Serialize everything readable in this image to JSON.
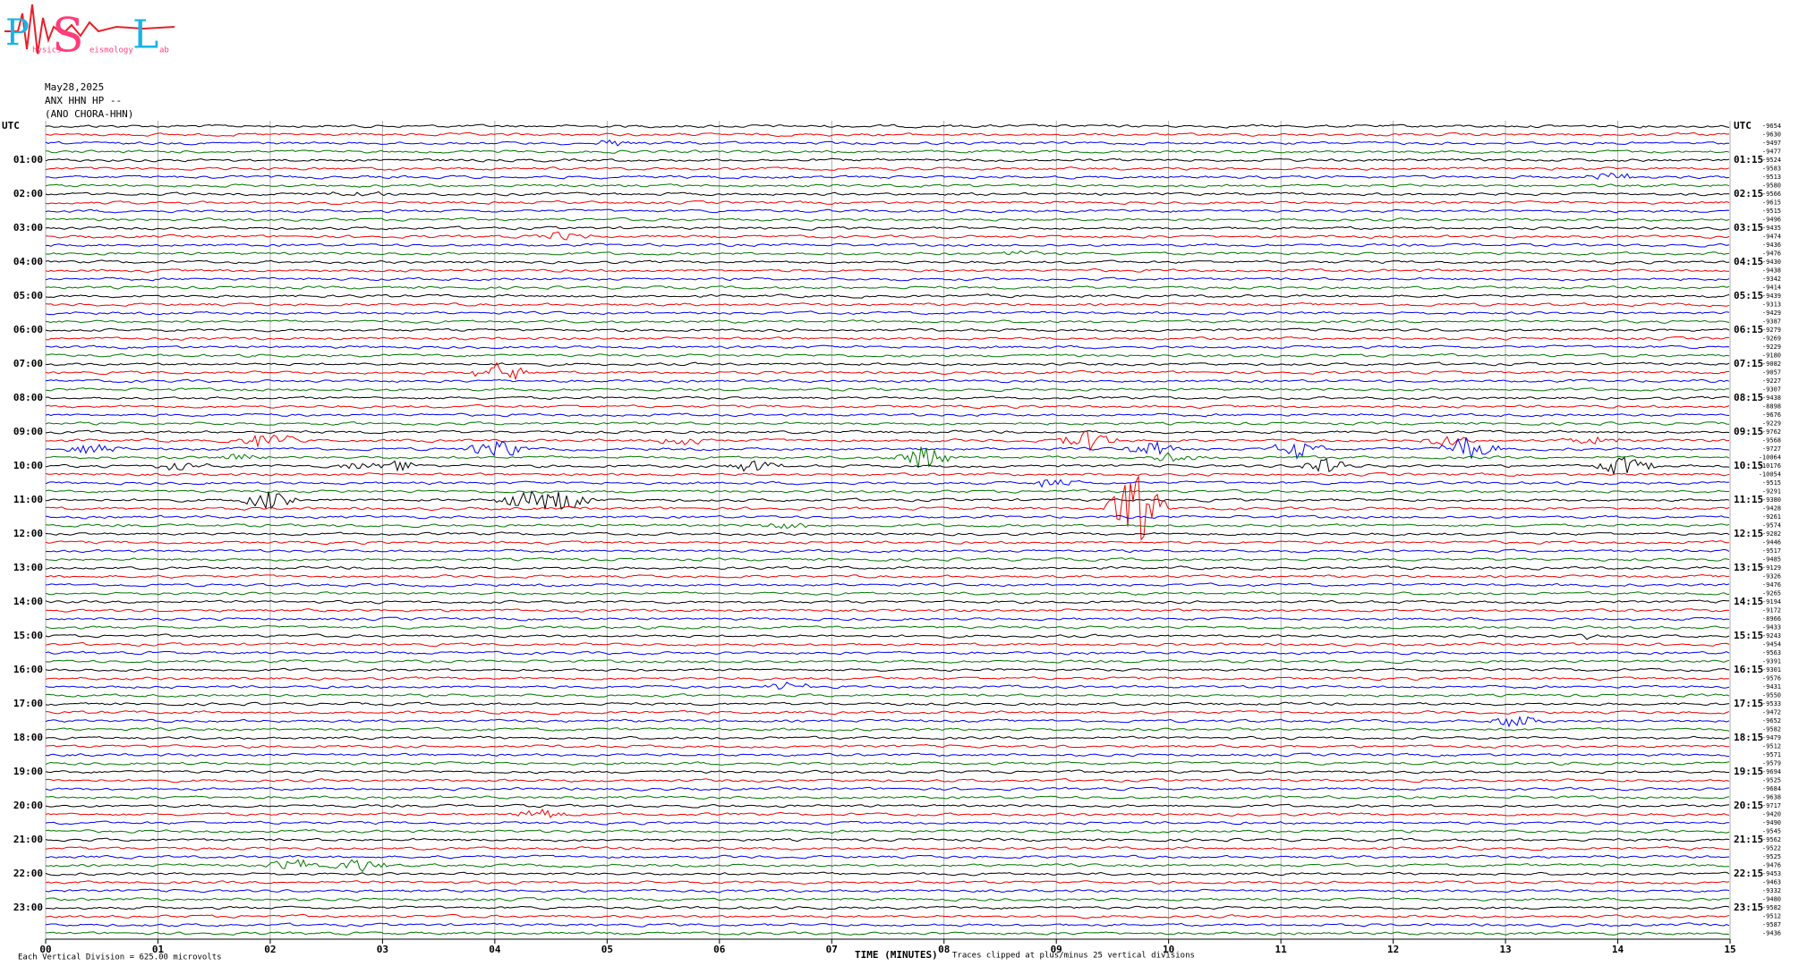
{
  "logo": {
    "letters": [
      "P",
      "S",
      "L"
    ],
    "words": [
      "hysics",
      "eismology",
      "ab"
    ]
  },
  "header": {
    "date": "May28,2025",
    "station": "ANX HHN HP --",
    "name": "(ANO CHORA-HHN)"
  },
  "left_labels": [
    "UTC",
    "01:00",
    "02:00",
    "03:00",
    "04:00",
    "05:00",
    "06:00",
    "07:00",
    "08:00",
    "09:00",
    "10:00",
    "11:00",
    "12:00",
    "13:00",
    "14:00",
    "15:00",
    "16:00",
    "17:00",
    "18:00",
    "19:00",
    "20:00",
    "21:00",
    "22:00",
    "23:00"
  ],
  "right_labels": [
    "UTC",
    "01:15",
    "02:15",
    "03:15",
    "04:15",
    "05:15",
    "06:15",
    "07:15",
    "08:15",
    "09:15",
    "10:15",
    "11:15",
    "12:15",
    "13:15",
    "14:15",
    "15:15",
    "16:15",
    "17:15",
    "18:15",
    "19:15",
    "20:15",
    "21:15",
    "22:15",
    "23:15"
  ],
  "row_values": [
    "-9654",
    "-9630",
    "-9497",
    "-9477",
    "-9524",
    "-9583",
    "-9513",
    "-9580",
    "-9566",
    "-9615",
    "-9515",
    "-9496",
    "-9435",
    "-9474",
    "-9436",
    "-9476",
    "-9430",
    "-9438",
    "-9342",
    "-9414",
    "-9439",
    "-9313",
    "-9429",
    "-9387",
    "-9279",
    "-9269",
    "-9229",
    "-9180",
    "-9082",
    "-9057",
    "-9227",
    "-9307",
    "-9438",
    "-8898",
    "-9676",
    "-9229",
    "-9762",
    "-9568",
    "-9727",
    "-10064",
    "-10176",
    "-10054",
    "-9515",
    "-9291",
    "-9380",
    "-9428",
    "-9261",
    "-9574",
    "-9282",
    "-9446",
    "-9517",
    "-9485",
    "-9129",
    "-9326",
    "-9476",
    "-9265",
    "-9194",
    "-9172",
    "-8966",
    "-9433",
    "-9243",
    "-9454",
    "-9563",
    "-9391",
    "-9301",
    "-9576",
    "-9431",
    "-9550",
    "-9533",
    "-9472",
    "-9652",
    "-9582",
    "-9479",
    "-9512",
    "-9571",
    "-9579",
    "-9694",
    "-9525",
    "-9684",
    "-9638",
    "-9717",
    "-9420",
    "-9490",
    "-9545",
    "-9562",
    "-9522",
    "-9525",
    "-9476",
    "-9453",
    "-9463",
    "-9332",
    "-9480",
    "-9582",
    "-9512",
    "-9587",
    "-9436"
  ],
  "x_ticks": [
    "00",
    "01",
    "02",
    "03",
    "04",
    "05",
    "06",
    "07",
    "08",
    "09",
    "10",
    "11",
    "12",
    "13",
    "14",
    "15"
  ],
  "footer": {
    "scale": "Each Vertical Division =  625.00 microvolts",
    "axis": "TIME (MINUTES)",
    "clip": "Traces clipped at plus/minus 25 vertical divisions"
  }
}
